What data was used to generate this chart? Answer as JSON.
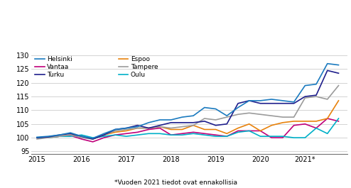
{
  "footnote": "*Vuoden 2021 tiedot ovat ennakollisia",
  "xlabel_ticks": [
    "2015",
    "2016",
    "2017",
    "2018",
    "2019",
    "2020",
    "2021*"
  ],
  "yticks": [
    95,
    100,
    105,
    110,
    115,
    120,
    125,
    130
  ],
  "ylim": [
    94,
    131
  ],
  "xlim": [
    2014.88,
    2021.95
  ],
  "colors": {
    "Helsinki": "#1a7abf",
    "Vantaa": "#c0007a",
    "Turku": "#1f1f8c",
    "Espoo": "#e8820c",
    "Tampere": "#9b9b9b",
    "Oulu": "#00b0c8"
  },
  "linewidth": 1.2,
  "series": {
    "Helsinki": [
      100.2,
      100.5,
      101.0,
      101.8,
      100.5,
      99.8,
      101.5,
      103.0,
      103.5,
      104.0,
      105.5,
      106.5,
      106.5,
      107.5,
      108.0,
      111.0,
      110.5,
      108.0,
      111.0,
      113.5,
      113.5,
      114.0,
      113.5,
      113.0,
      119.0,
      119.5,
      127.0,
      126.5
    ],
    "Vantaa": [
      100.0,
      100.2,
      100.5,
      100.8,
      99.5,
      98.5,
      100.0,
      101.0,
      101.5,
      102.0,
      103.0,
      103.5,
      101.0,
      101.5,
      102.0,
      101.5,
      101.0,
      100.5,
      102.5,
      102.5,
      102.5,
      100.0,
      100.0,
      104.5,
      105.0,
      103.5,
      107.0,
      106.0
    ],
    "Turku": [
      100.0,
      100.3,
      101.0,
      101.5,
      100.5,
      99.5,
      101.0,
      103.0,
      103.5,
      104.5,
      103.5,
      104.5,
      105.5,
      105.5,
      105.5,
      106.0,
      104.5,
      105.0,
      112.5,
      113.5,
      112.5,
      112.5,
      112.5,
      112.5,
      115.0,
      115.5,
      124.5,
      123.5
    ],
    "Espoo": [
      100.0,
      100.0,
      100.5,
      101.0,
      100.5,
      99.5,
      101.0,
      102.0,
      102.5,
      103.5,
      103.5,
      104.0,
      103.0,
      103.0,
      104.5,
      103.0,
      103.0,
      101.5,
      103.5,
      105.0,
      102.5,
      104.5,
      105.5,
      106.0,
      106.0,
      106.0,
      107.0,
      113.5
    ],
    "Tampere": [
      99.5,
      100.0,
      100.5,
      101.0,
      100.0,
      99.5,
      101.0,
      102.5,
      103.0,
      103.5,
      103.5,
      104.0,
      103.5,
      104.0,
      104.5,
      107.0,
      106.5,
      107.5,
      108.5,
      109.0,
      108.5,
      108.0,
      107.5,
      107.5,
      114.5,
      115.0,
      114.0,
      119.0
    ],
    "Oulu": [
      100.0,
      100.0,
      100.5,
      100.5,
      101.0,
      100.0,
      100.5,
      101.0,
      100.5,
      101.0,
      101.5,
      101.5,
      101.0,
      101.0,
      101.5,
      101.0,
      100.5,
      100.5,
      102.0,
      102.5,
      100.5,
      100.5,
      100.5,
      100.0,
      100.0,
      103.5,
      101.5,
      107.0
    ]
  },
  "labels_col1": [
    "Helsinki",
    "Vantaa",
    "Turku"
  ],
  "labels_col2": [
    "Espoo",
    "Tampere",
    "Oulu"
  ]
}
